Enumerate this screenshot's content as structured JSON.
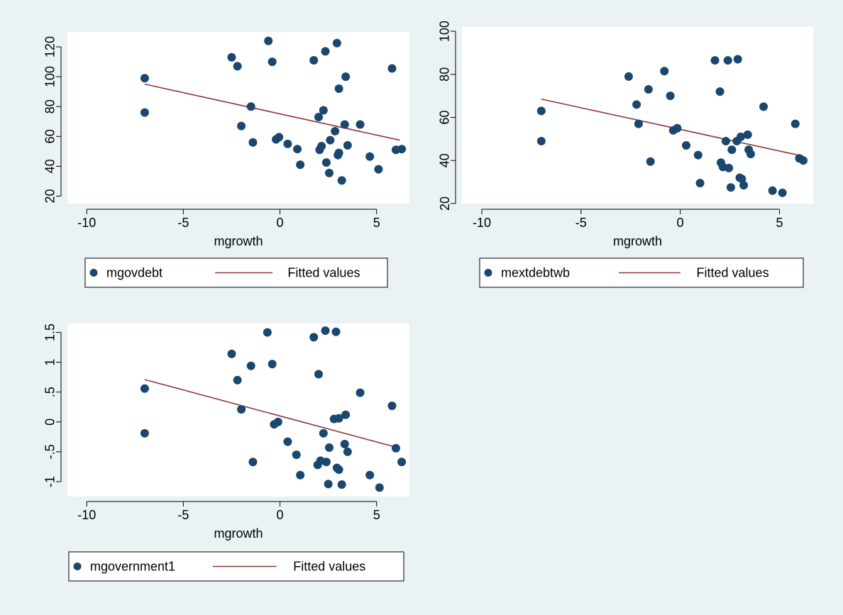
{
  "chart_data": [
    {
      "type": "scatter",
      "xlabel": "mgrowth",
      "ylabel": "",
      "xlim": [
        -11,
        6.7
      ],
      "ylim": [
        15,
        130
      ],
      "xticks": [
        -10,
        -5,
        0,
        5
      ],
      "yticks": [
        20,
        40,
        60,
        80,
        100,
        120
      ],
      "xtick_labels": [
        "-10",
        "-5",
        "0",
        "5"
      ],
      "ytick_labels": [
        "20",
        "40",
        "60",
        "80",
        "100",
        "120"
      ],
      "grid": false,
      "legend_position": "bottom",
      "series": [
        {
          "name": "mgovdebt",
          "kind": "scatter",
          "color": "#1a476f",
          "points": [
            [
              -7.0,
              99
            ],
            [
              -7.0,
              76
            ],
            [
              -2.5,
              113
            ],
            [
              -2.2,
              107
            ],
            [
              -2.0,
              67
            ],
            [
              -1.5,
              80
            ],
            [
              -1.4,
              56
            ],
            [
              -0.6,
              124
            ],
            [
              -0.4,
              110
            ],
            [
              -0.2,
              58
            ],
            [
              -0.05,
              59.5
            ],
            [
              0.4,
              55
            ],
            [
              0.9,
              51.5
            ],
            [
              1.05,
              41
            ],
            [
              1.75,
              111
            ],
            [
              2.0,
              73
            ],
            [
              2.05,
              51
            ],
            [
              2.15,
              53.5
            ],
            [
              2.25,
              77.5
            ],
            [
              2.35,
              117
            ],
            [
              2.4,
              42.5
            ],
            [
              2.55,
              35.5
            ],
            [
              2.6,
              57.5
            ],
            [
              2.85,
              63.5
            ],
            [
              2.95,
              122.5
            ],
            [
              3.0,
              47.5
            ],
            [
              3.05,
              92
            ],
            [
              3.05,
              49
            ],
            [
              3.2,
              30.5
            ],
            [
              3.35,
              68
            ],
            [
              3.4,
              100
            ],
            [
              3.5,
              54
            ],
            [
              4.15,
              68
            ],
            [
              4.65,
              46.5
            ],
            [
              5.1,
              38
            ],
            [
              5.8,
              105.5
            ],
            [
              6.0,
              51
            ],
            [
              6.3,
              51.5
            ]
          ]
        },
        {
          "name": "Fitted values",
          "kind": "line",
          "color": "#90353b",
          "points": [
            [
              -7.0,
              95
            ],
            [
              6.2,
              57.5
            ]
          ]
        }
      ]
    },
    {
      "type": "scatter",
      "xlabel": "mgrowth",
      "ylabel": "",
      "xlim": [
        -11,
        6.7
      ],
      "ylim": [
        20,
        102
      ],
      "xticks": [
        -10,
        -5,
        0,
        5
      ],
      "yticks": [
        20,
        40,
        60,
        80,
        100
      ],
      "xtick_labels": [
        "-10",
        "-5",
        "0",
        "5"
      ],
      "ytick_labels": [
        "20",
        "40",
        "60",
        "80",
        "100"
      ],
      "grid": false,
      "legend_position": "bottom",
      "series": [
        {
          "name": "mextdebtwb",
          "kind": "scatter",
          "color": "#1a476f",
          "points": [
            [
              -7.0,
              63
            ],
            [
              -7.0,
              49
            ],
            [
              -2.6,
              79
            ],
            [
              -2.2,
              66
            ],
            [
              -2.1,
              57
            ],
            [
              -1.6,
              73
            ],
            [
              -1.5,
              39.5
            ],
            [
              -0.8,
              81.5
            ],
            [
              -0.5,
              70
            ],
            [
              -0.35,
              54
            ],
            [
              -0.15,
              55
            ],
            [
              0.3,
              47
            ],
            [
              0.9,
              42.5
            ],
            [
              1.0,
              29.5
            ],
            [
              1.75,
              86.5
            ],
            [
              2.0,
              72
            ],
            [
              2.05,
              39
            ],
            [
              2.15,
              37
            ],
            [
              2.3,
              49
            ],
            [
              2.4,
              86.5
            ],
            [
              2.45,
              36.5
            ],
            [
              2.55,
              27.5
            ],
            [
              2.6,
              45
            ],
            [
              2.85,
              49
            ],
            [
              2.9,
              87
            ],
            [
              3.0,
              32
            ],
            [
              3.05,
              51
            ],
            [
              3.1,
              31.5
            ],
            [
              3.2,
              28.5
            ],
            [
              3.4,
              52
            ],
            [
              3.45,
              45
            ],
            [
              3.55,
              43
            ],
            [
              4.2,
              65
            ],
            [
              4.65,
              26
            ],
            [
              5.15,
              25
            ],
            [
              5.8,
              57
            ],
            [
              6.0,
              41
            ],
            [
              6.2,
              40
            ]
          ]
        },
        {
          "name": "Fitted values",
          "kind": "line",
          "color": "#90353b",
          "points": [
            [
              -7.0,
              68.5
            ],
            [
              6.2,
              42
            ]
          ]
        }
      ]
    },
    {
      "type": "scatter",
      "xlabel": "mgrowth",
      "ylabel": "",
      "xlim": [
        -11,
        6.7
      ],
      "ylim": [
        -1.25,
        1.65
      ],
      "xticks": [
        -10,
        -5,
        0,
        5
      ],
      "yticks": [
        -1,
        -0.5,
        0,
        0.5,
        1,
        1.5
      ],
      "xtick_labels": [
        "-10",
        "-5",
        "0",
        "5"
      ],
      "ytick_labels": [
        "-1",
        "-.5",
        "0",
        ".5",
        "1",
        "1.5"
      ],
      "grid": false,
      "legend_position": "bottom",
      "series": [
        {
          "name": "mgovernment1",
          "kind": "scatter",
          "color": "#1a476f",
          "points": [
            [
              -7.0,
              0.56
            ],
            [
              -7.0,
              -0.19
            ],
            [
              -2.5,
              1.14
            ],
            [
              -2.2,
              0.7
            ],
            [
              -2.0,
              0.21
            ],
            [
              -1.5,
              0.94
            ],
            [
              -1.4,
              -0.67
            ],
            [
              -0.65,
              1.5
            ],
            [
              -0.4,
              0.97
            ],
            [
              -0.3,
              -0.04
            ],
            [
              -0.1,
              0.0
            ],
            [
              0.4,
              -0.33
            ],
            [
              0.85,
              -0.55
            ],
            [
              1.05,
              -0.89
            ],
            [
              1.75,
              1.42
            ],
            [
              1.95,
              -0.72
            ],
            [
              2.0,
              0.8
            ],
            [
              2.1,
              -0.65
            ],
            [
              2.25,
              -0.19
            ],
            [
              2.35,
              1.53
            ],
            [
              2.4,
              -0.67
            ],
            [
              2.5,
              -1.04
            ],
            [
              2.55,
              -0.43
            ],
            [
              2.8,
              0.05
            ],
            [
              2.9,
              1.51
            ],
            [
              2.95,
              -0.77
            ],
            [
              3.05,
              0.06
            ],
            [
              3.05,
              -0.8
            ],
            [
              3.2,
              -1.05
            ],
            [
              3.35,
              -0.37
            ],
            [
              3.4,
              0.12
            ],
            [
              3.5,
              -0.5
            ],
            [
              4.15,
              0.49
            ],
            [
              4.65,
              -0.89
            ],
            [
              5.15,
              -1.1
            ],
            [
              5.8,
              0.27
            ],
            [
              6.0,
              -0.44
            ],
            [
              6.3,
              -0.67
            ]
          ]
        },
        {
          "name": "Fitted values",
          "kind": "line",
          "color": "#90353b",
          "points": [
            [
              -7.0,
              0.71
            ],
            [
              6.2,
              -0.44
            ]
          ]
        }
      ]
    }
  ]
}
